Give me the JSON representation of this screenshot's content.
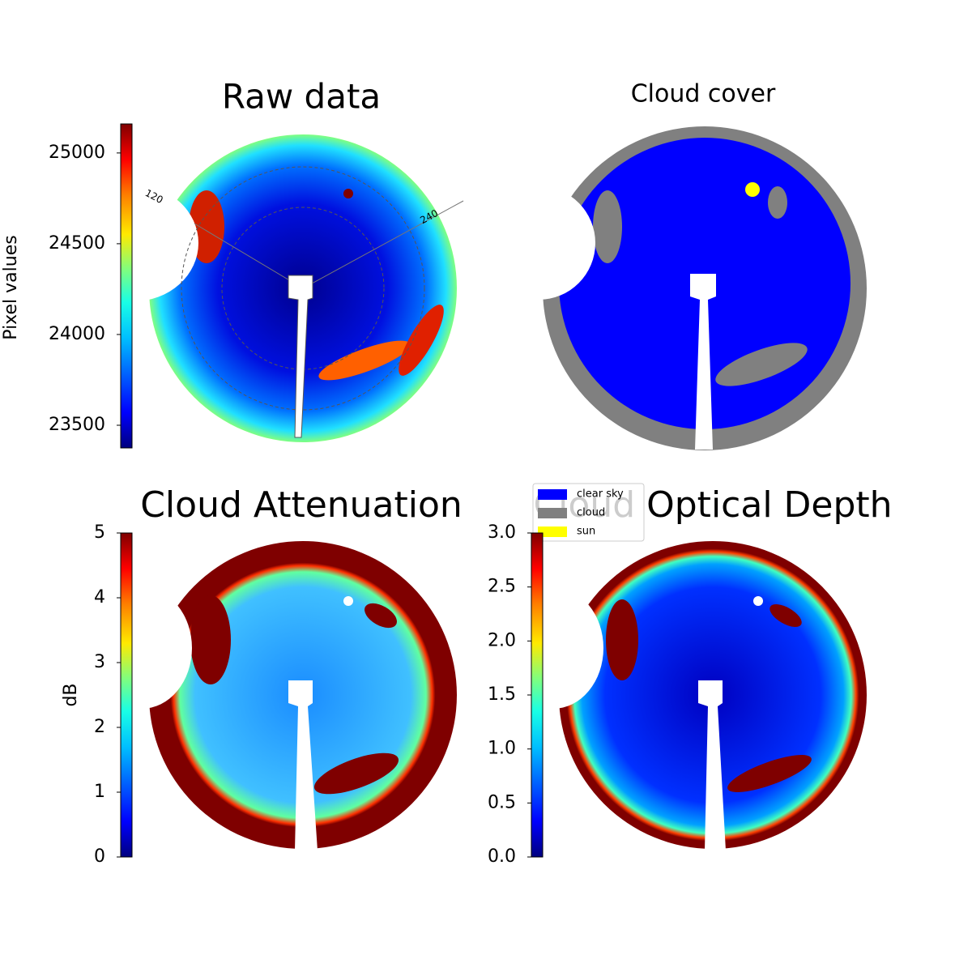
{
  "chart_data": [
    {
      "type": "image",
      "title": "Raw data",
      "colorbar_label": "Pixel values",
      "ylim": [
        23375,
        25160
      ],
      "yticks": [
        23500,
        24000,
        24500,
        25000
      ],
      "annotations": [
        "120",
        "240"
      ]
    },
    {
      "type": "image",
      "title": "Cloud cover",
      "series": [
        {
          "name": "clear sky",
          "color": "#0000ff"
        },
        {
          "name": "cloud",
          "color": "#808080"
        },
        {
          "name": "sun",
          "color": "#ffff00"
        }
      ]
    },
    {
      "type": "image",
      "title": "Cloud Attenuation",
      "colorbar_label": "dB",
      "ylim": [
        0,
        5
      ],
      "yticks": [
        0,
        1,
        2,
        3,
        4,
        5
      ]
    },
    {
      "type": "image",
      "title": "Cloud Optical Depth",
      "ylim": [
        0,
        3
      ],
      "yticks": [
        {
          "value": 0,
          "label": "0.0"
        },
        0.5,
        {
          "value": 1,
          "label": "1.0"
        },
        1.5,
        {
          "value": 2,
          "label": "2.0"
        },
        2.5,
        {
          "value": 3,
          "label": "3.0"
        }
      ]
    }
  ]
}
